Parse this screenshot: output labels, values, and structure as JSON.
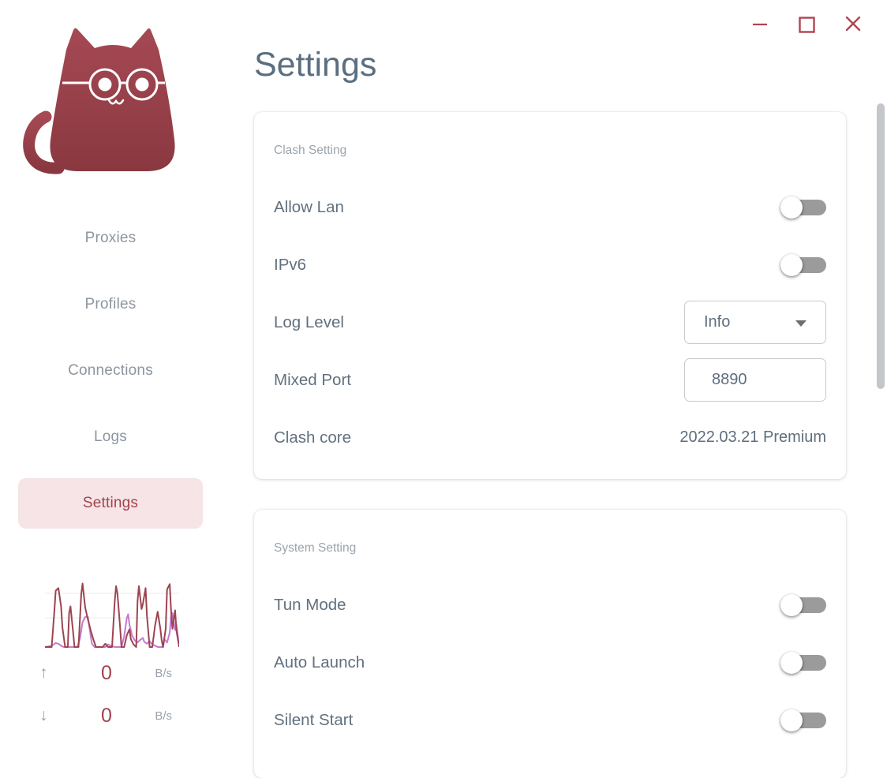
{
  "window": {
    "controls": {
      "minimize": "minimize",
      "maximize": "maximize",
      "close": "close"
    }
  },
  "page": {
    "title": "Settings"
  },
  "sidebar": {
    "nav_items": [
      {
        "label": "Proxies",
        "selected": false
      },
      {
        "label": "Profiles",
        "selected": false
      },
      {
        "label": "Connections",
        "selected": false
      },
      {
        "label": "Logs",
        "selected": false
      },
      {
        "label": "Settings",
        "selected": true
      }
    ],
    "traffic": {
      "up_arrow": "↑",
      "up_value": "0",
      "up_unit": "B/s",
      "down_arrow": "↓",
      "down_value": "0",
      "down_unit": "B/s"
    }
  },
  "cards": [
    {
      "section": "Clash Setting",
      "rows": [
        {
          "label": "Allow Lan",
          "control": "switch",
          "state": "off"
        },
        {
          "label": "IPv6",
          "control": "switch",
          "state": "off"
        },
        {
          "label": "Log Level",
          "control": "select",
          "value": "Info"
        },
        {
          "label": "Mixed Port",
          "control": "input",
          "value": "8890"
        },
        {
          "label": "Clash core",
          "control": "text",
          "value": "2022.03.21 Premium"
        }
      ]
    },
    {
      "section": "System Setting",
      "rows": [
        {
          "label": "Tun Mode",
          "control": "switch",
          "state": "off"
        },
        {
          "label": "Auto Launch",
          "control": "switch",
          "state": "off"
        },
        {
          "label": "Silent Start",
          "control": "switch",
          "state": "off"
        }
      ]
    }
  ],
  "colors": {
    "brand_red": "#a3424d",
    "pill_pink": "#f6e4e6",
    "nav_gray": "#8c96a0",
    "label_slate": "#61707f",
    "switch_track": "#9b9b9b",
    "window_controls": "#b2434f"
  },
  "chart_data": {
    "type": "line",
    "title": "Sidebar traffic mini-chart (up/down speed over time)",
    "xlabel": "",
    "ylabel": "",
    "ylim": [
      0,
      100
    ],
    "grid": true,
    "legend": "none",
    "note": "No axis labels shown in UI; y values normalized 0-100 from pixel heights",
    "series": [
      {
        "name": "up",
        "color": "#9d4450",
        "points": [
          [
            0,
            0
          ],
          [
            5,
            0
          ],
          [
            7,
            55
          ],
          [
            8,
            86
          ],
          [
            10,
            90
          ],
          [
            12,
            62
          ],
          [
            13,
            30
          ],
          [
            15,
            0
          ],
          [
            17,
            0
          ],
          [
            18,
            52
          ],
          [
            19,
            62
          ],
          [
            21,
            22
          ],
          [
            22,
            0
          ],
          [
            25,
            0
          ],
          [
            27,
            80
          ],
          [
            28,
            97
          ],
          [
            30,
            60
          ],
          [
            32,
            42
          ],
          [
            34,
            26
          ],
          [
            36,
            12
          ],
          [
            38,
            0
          ],
          [
            43,
            0
          ],
          [
            45,
            5
          ],
          [
            47,
            0
          ],
          [
            50,
            0
          ],
          [
            52,
            70
          ],
          [
            53,
            93
          ],
          [
            54,
            82
          ],
          [
            56,
            30
          ],
          [
            57,
            0
          ],
          [
            59,
            0
          ],
          [
            61,
            18
          ],
          [
            63,
            27
          ],
          [
            64,
            12
          ],
          [
            66,
            4
          ],
          [
            68,
            0
          ],
          [
            69,
            70
          ],
          [
            70,
            93
          ],
          [
            72,
            58
          ],
          [
            73,
            66
          ],
          [
            75,
            90
          ],
          [
            76,
            48
          ],
          [
            78,
            0
          ],
          [
            80,
            0
          ],
          [
            82,
            32
          ],
          [
            84,
            54
          ],
          [
            86,
            28
          ],
          [
            87,
            10
          ],
          [
            88,
            0
          ],
          [
            90,
            28
          ],
          [
            91,
            88
          ],
          [
            93,
            96
          ],
          [
            94,
            55
          ],
          [
            95,
            28
          ],
          [
            96,
            42
          ],
          [
            97,
            56
          ],
          [
            98,
            25
          ],
          [
            100,
            0
          ]
        ]
      },
      {
        "name": "down",
        "color": "#c679d2",
        "points": [
          [
            0,
            0
          ],
          [
            5,
            2
          ],
          [
            8,
            6
          ],
          [
            10,
            5
          ],
          [
            12,
            2
          ],
          [
            14,
            0
          ],
          [
            24,
            0
          ],
          [
            26,
            12
          ],
          [
            28,
            38
          ],
          [
            30,
            46
          ],
          [
            32,
            46
          ],
          [
            34,
            18
          ],
          [
            35,
            5
          ],
          [
            37,
            0
          ],
          [
            45,
            0
          ],
          [
            47,
            4
          ],
          [
            49,
            2
          ],
          [
            52,
            0
          ],
          [
            57,
            0
          ],
          [
            59,
            16
          ],
          [
            61,
            44
          ],
          [
            62,
            50
          ],
          [
            63,
            34
          ],
          [
            65,
            17
          ],
          [
            67,
            10
          ],
          [
            69,
            7
          ],
          [
            71,
            11
          ],
          [
            73,
            14
          ],
          [
            74,
            8
          ],
          [
            76,
            5
          ],
          [
            78,
            9
          ],
          [
            80,
            4
          ],
          [
            82,
            2
          ],
          [
            84,
            0
          ],
          [
            88,
            0
          ],
          [
            89,
            12
          ],
          [
            91,
            7
          ],
          [
            93,
            22
          ],
          [
            94,
            48
          ],
          [
            95,
            52
          ],
          [
            96,
            38
          ],
          [
            97,
            26
          ],
          [
            98,
            34
          ],
          [
            99,
            18
          ],
          [
            100,
            0
          ]
        ]
      }
    ]
  }
}
